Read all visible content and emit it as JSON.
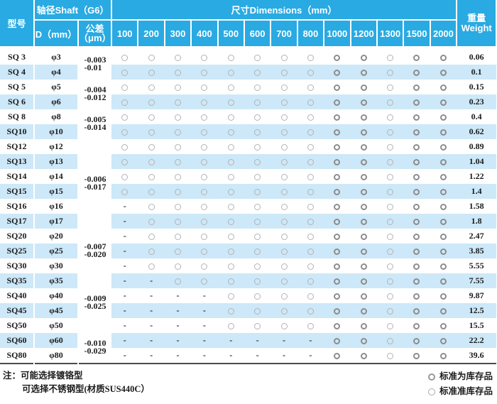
{
  "table": {
    "header": {
      "model": "型号",
      "shaft_group": "轴径Shaft（G6）",
      "d": "D（mm）",
      "tol_1": "公差",
      "tol_2": "（μm）",
      "dims_group": "尺寸Dimensions（mm）",
      "dim_labels": [
        "100",
        "200",
        "300",
        "400",
        "500",
        "600",
        "700",
        "800",
        "1000",
        "1200",
        "1300",
        "1500",
        "2000"
      ],
      "weight_1": "重量",
      "weight_2": "Weight"
    },
    "tolerance_groups": [
      {
        "span": 2,
        "upper": "-0.003",
        "lower": "-0.01"
      },
      {
        "span": 2,
        "upper": "-0.004",
        "lower": "-0.012"
      },
      {
        "span": 2,
        "upper": "-0.005",
        "lower": "-0.014"
      },
      {
        "span": 6,
        "upper": "-0.006",
        "lower": "-0.017"
      },
      {
        "span": 3,
        "upper": "-0.007",
        "lower": "-0.020"
      },
      {
        "span": 4,
        "upper": "-0.009",
        "lower": "-0.025"
      },
      {
        "span": 2,
        "upper": "-0.010",
        "lower": "-0.029"
      }
    ],
    "rows": [
      {
        "model": "SQ 3",
        "d": "φ3",
        "dims": [
          "o",
          "o",
          "o",
          "o",
          "o",
          "o",
          "o",
          "o",
          "O",
          "O",
          "o",
          "O",
          "O"
        ],
        "weight": "0.06"
      },
      {
        "model": "SQ 4",
        "d": "φ4",
        "dims": [
          "o",
          "o",
          "o",
          "o",
          "o",
          "o",
          "o",
          "o",
          "O",
          "O",
          "o",
          "O",
          "O"
        ],
        "weight": "0.1"
      },
      {
        "model": "SQ 5",
        "d": "φ5",
        "dims": [
          "o",
          "o",
          "o",
          "o",
          "o",
          "o",
          "o",
          "o",
          "O",
          "O",
          "o",
          "O",
          "O"
        ],
        "weight": "0.15"
      },
      {
        "model": "SQ 6",
        "d": "φ6",
        "dims": [
          "o",
          "o",
          "o",
          "o",
          "o",
          "o",
          "o",
          "o",
          "O",
          "O",
          "o",
          "O",
          "O"
        ],
        "weight": "0.23"
      },
      {
        "model": "SQ 8",
        "d": "φ8",
        "dims": [
          "o",
          "o",
          "o",
          "o",
          "o",
          "o",
          "o",
          "o",
          "O",
          "O",
          "o",
          "O",
          "O"
        ],
        "weight": "0.4"
      },
      {
        "model": "SQ10",
        "d": "φ10",
        "dims": [
          "o",
          "o",
          "o",
          "o",
          "o",
          "o",
          "o",
          "o",
          "O",
          "O",
          "o",
          "O",
          "O"
        ],
        "weight": "0.62"
      },
      {
        "model": "SQ12",
        "d": "φ12",
        "dims": [
          "o",
          "o",
          "o",
          "o",
          "o",
          "o",
          "o",
          "o",
          "O",
          "O",
          "o",
          "O",
          "O"
        ],
        "weight": "0.89"
      },
      {
        "model": "SQ13",
        "d": "φ13",
        "dims": [
          "o",
          "o",
          "o",
          "o",
          "o",
          "o",
          "o",
          "o",
          "O",
          "O",
          "o",
          "O",
          "O"
        ],
        "weight": "1.04"
      },
      {
        "model": "SQ14",
        "d": "φ14",
        "dims": [
          "o",
          "o",
          "o",
          "o",
          "o",
          "o",
          "o",
          "o",
          "O",
          "O",
          "o",
          "O",
          "O"
        ],
        "weight": "1.22"
      },
      {
        "model": "SQ15",
        "d": "φ15",
        "dims": [
          "o",
          "o",
          "o",
          "o",
          "o",
          "o",
          "o",
          "o",
          "O",
          "O",
          "o",
          "O",
          "O"
        ],
        "weight": "1.4"
      },
      {
        "model": "SQ16",
        "d": "φ16",
        "dims": [
          "-",
          "o",
          "o",
          "o",
          "o",
          "o",
          "o",
          "o",
          "O",
          "O",
          "o",
          "O",
          "O"
        ],
        "weight": "1.58"
      },
      {
        "model": "SQ17",
        "d": "φ17",
        "dims": [
          "-",
          "o",
          "o",
          "o",
          "o",
          "o",
          "o",
          "o",
          "O",
          "O",
          "o",
          "O",
          "O"
        ],
        "weight": "1.8"
      },
      {
        "model": "SQ20",
        "d": "φ20",
        "dims": [
          "-",
          "o",
          "o",
          "o",
          "o",
          "o",
          "o",
          "o",
          "O",
          "O",
          "o",
          "O",
          "O"
        ],
        "weight": "2.47"
      },
      {
        "model": "SQ25",
        "d": "φ25",
        "dims": [
          "-",
          "o",
          "o",
          "o",
          "o",
          "o",
          "o",
          "o",
          "O",
          "O",
          "o",
          "O",
          "O"
        ],
        "weight": "3.85"
      },
      {
        "model": "SQ30",
        "d": "φ30",
        "dims": [
          "-",
          "o",
          "o",
          "o",
          "o",
          "o",
          "o",
          "o",
          "O",
          "O",
          "o",
          "O",
          "O"
        ],
        "weight": "5.55"
      },
      {
        "model": "SQ35",
        "d": "φ35",
        "dims": [
          "-",
          "-",
          "o",
          "o",
          "o",
          "o",
          "o",
          "o",
          "O",
          "O",
          "o",
          "O",
          "O"
        ],
        "weight": "7.55"
      },
      {
        "model": "SQ40",
        "d": "φ40",
        "dims": [
          "-",
          "-",
          "-",
          "-",
          "o",
          "o",
          "o",
          "o",
          "O",
          "O",
          "o",
          "O",
          "O"
        ],
        "weight": "9.87"
      },
      {
        "model": "SQ45",
        "d": "φ45",
        "dims": [
          "-",
          "-",
          "-",
          "-",
          "o",
          "o",
          "o",
          "o",
          "O",
          "O",
          "o",
          "O",
          "O"
        ],
        "weight": "12.5"
      },
      {
        "model": "SQ50",
        "d": "φ50",
        "dims": [
          "-",
          "-",
          "-",
          "-",
          "o",
          "o",
          "o",
          "o",
          "O",
          "O",
          "o",
          "O",
          "O"
        ],
        "weight": "15.5"
      },
      {
        "model": "SQ60",
        "d": "φ60",
        "dims": [
          "-",
          "-",
          "-",
          "-",
          "-",
          "-",
          "-",
          "-",
          "O",
          "O",
          "o",
          "O",
          "O"
        ],
        "weight": "22.2"
      },
      {
        "model": "SQ80",
        "d": "φ80",
        "dims": [
          "-",
          "-",
          "-",
          "-",
          "-",
          "-",
          "-",
          "-",
          "O",
          "O",
          "o",
          "O",
          "O"
        ],
        "weight": "39.6"
      }
    ]
  },
  "notes": {
    "prefix": "注：",
    "line1": "可能选择镀铬型",
    "line2": "可选择不锈钢型(材质SUS440C）"
  },
  "legend": [
    {
      "label": "标准为库存品"
    },
    {
      "label": "标准准库存品"
    }
  ],
  "colors": {
    "header_bg": "#29aae2",
    "stripe": "#cde8f8",
    "circle_thin": "#b3b3b3",
    "circle_bold": "#8c8c8c",
    "bottom_rule": "#4a4a4a"
  }
}
